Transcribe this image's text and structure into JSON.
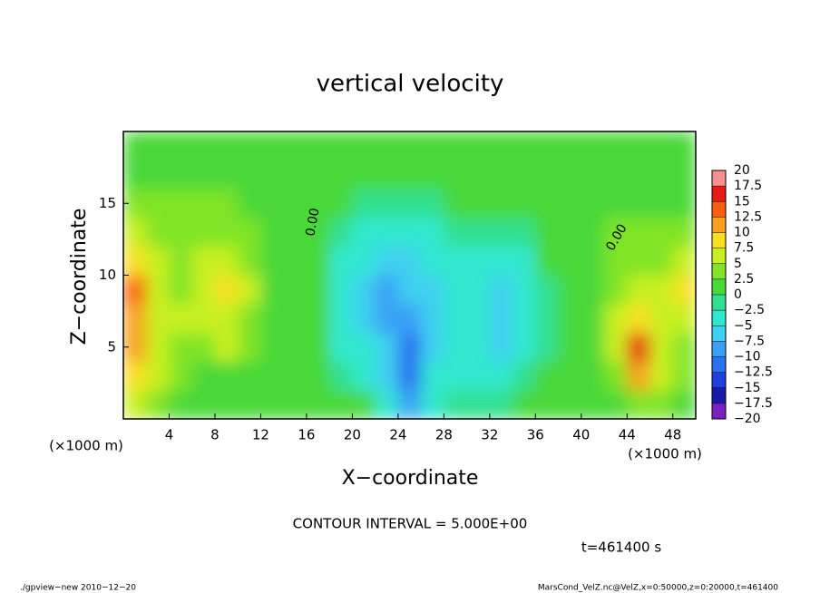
{
  "chart_data": {
    "type": "contour",
    "title": "vertical velocity",
    "xlabel": "X−coordinate",
    "ylabel": "Z−coordinate",
    "x_unit_label": "(×1000 m)",
    "xlim": [
      0,
      50
    ],
    "ylim": [
      0,
      20
    ],
    "xticks": [
      4,
      8,
      12,
      16,
      20,
      24,
      28,
      32,
      36,
      40,
      44,
      48
    ],
    "yticks": [
      5,
      10,
      15
    ],
    "x": [
      1,
      3,
      5,
      7,
      9,
      11,
      13,
      15,
      17,
      19,
      21,
      23,
      25,
      27,
      29,
      31,
      33,
      35,
      37,
      39,
      41,
      43,
      45,
      47,
      49
    ],
    "z": [
      1,
      3,
      5,
      7,
      9,
      11,
      13,
      15,
      17,
      19
    ],
    "values": [
      [
        6,
        4,
        2,
        1,
        2,
        1,
        0,
        0,
        1,
        0,
        0,
        -3,
        -10,
        -3,
        -2,
        -1,
        -1,
        0,
        0,
        0,
        1,
        2,
        4,
        3,
        2
      ],
      [
        9,
        5,
        3,
        2,
        1,
        1,
        1,
        0,
        1,
        -2,
        -4,
        -6,
        -12,
        -5,
        -4,
        -3,
        -3,
        -2,
        0,
        0,
        1,
        4,
        10,
        5,
        3
      ],
      [
        10,
        6,
        4,
        3,
        5,
        3,
        1,
        1,
        1,
        -3,
        -5,
        -7,
        -11,
        -7,
        -5,
        -5,
        -6,
        -4,
        -1,
        0,
        2,
        7,
        15,
        6,
        4
      ],
      [
        12,
        7,
        5,
        5,
        7,
        4,
        2,
        1,
        1,
        -4,
        -6,
        -8,
        -8,
        -6,
        -5,
        -5,
        -7,
        -5,
        -1,
        0,
        2,
        6,
        9,
        5,
        6
      ],
      [
        13,
        6,
        4,
        6,
        9,
        5,
        2,
        1,
        1,
        -4,
        -6,
        -8,
        -7,
        -6,
        -5,
        -5,
        -6,
        -4,
        -1,
        0,
        2,
        4,
        5,
        5,
        9
      ],
      [
        8,
        5,
        4,
        6,
        6,
        4,
        2,
        1,
        1,
        -3,
        -5,
        -7,
        -6,
        -5,
        -4,
        -3,
        -4,
        -3,
        0,
        0,
        2,
        3,
        4,
        4,
        5
      ],
      [
        5,
        4,
        3,
        4,
        4,
        3,
        2,
        1,
        1,
        -2,
        -4,
        -5,
        -4,
        -3,
        -2,
        -1,
        -1,
        -1,
        0,
        1,
        2,
        3,
        3,
        3,
        3
      ],
      [
        3,
        3,
        3,
        3,
        3,
        2,
        1,
        1,
        1,
        0,
        -1,
        -2,
        -1,
        -1,
        0,
        0,
        0,
        0,
        1,
        1,
        2,
        2,
        2,
        2,
        2
      ],
      [
        2,
        2,
        2,
        2,
        2,
        2,
        1,
        1,
        1,
        1,
        1,
        1,
        1,
        1,
        1,
        1,
        1,
        1,
        1,
        1,
        1,
        2,
        2,
        2,
        2
      ],
      [
        1,
        1,
        1,
        1,
        1,
        1,
        1,
        1,
        1,
        1,
        1,
        1,
        1,
        1,
        1,
        1,
        1,
        1,
        1,
        1,
        1,
        1,
        1,
        1,
        1
      ]
    ],
    "colorbar": {
      "levels": [
        {
          "value": -20,
          "label": "−20"
        },
        {
          "value": -17.5,
          "label": "−17.5"
        },
        {
          "value": -15,
          "label": "−15"
        },
        {
          "value": -12.5,
          "label": "−12.5"
        },
        {
          "value": -10,
          "label": "−10"
        },
        {
          "value": -7.5,
          "label": "−7.5"
        },
        {
          "value": -5,
          "label": "−5"
        },
        {
          "value": -2.5,
          "label": "−2.5"
        },
        0,
        2.5,
        5,
        7.5,
        10,
        12.5,
        15,
        17.5,
        20
      ],
      "colors": [
        "#7a1fc0",
        "#1a1aa8",
        "#1f3fe0",
        "#2a70f0",
        "#3aa0f5",
        "#40d0f0",
        "#30e8d0",
        "#30e090",
        "#48d838",
        "#80e428",
        "#c8f020",
        "#f8e020",
        "#f8a020",
        "#f86010",
        "#e81818",
        "#f89090"
      ]
    },
    "contour_labels": [
      "0.00",
      "0.00"
    ],
    "contour_interval": "CONTOUR INTERVAL = 5.000E+00",
    "time_label": "t=461400 s",
    "footer_left": "./gpview−new  2010−12−20",
    "footer_right": "MarsCond_VelZ.nc@VelZ,x=0:50000,z=0:20000,t=461400"
  }
}
